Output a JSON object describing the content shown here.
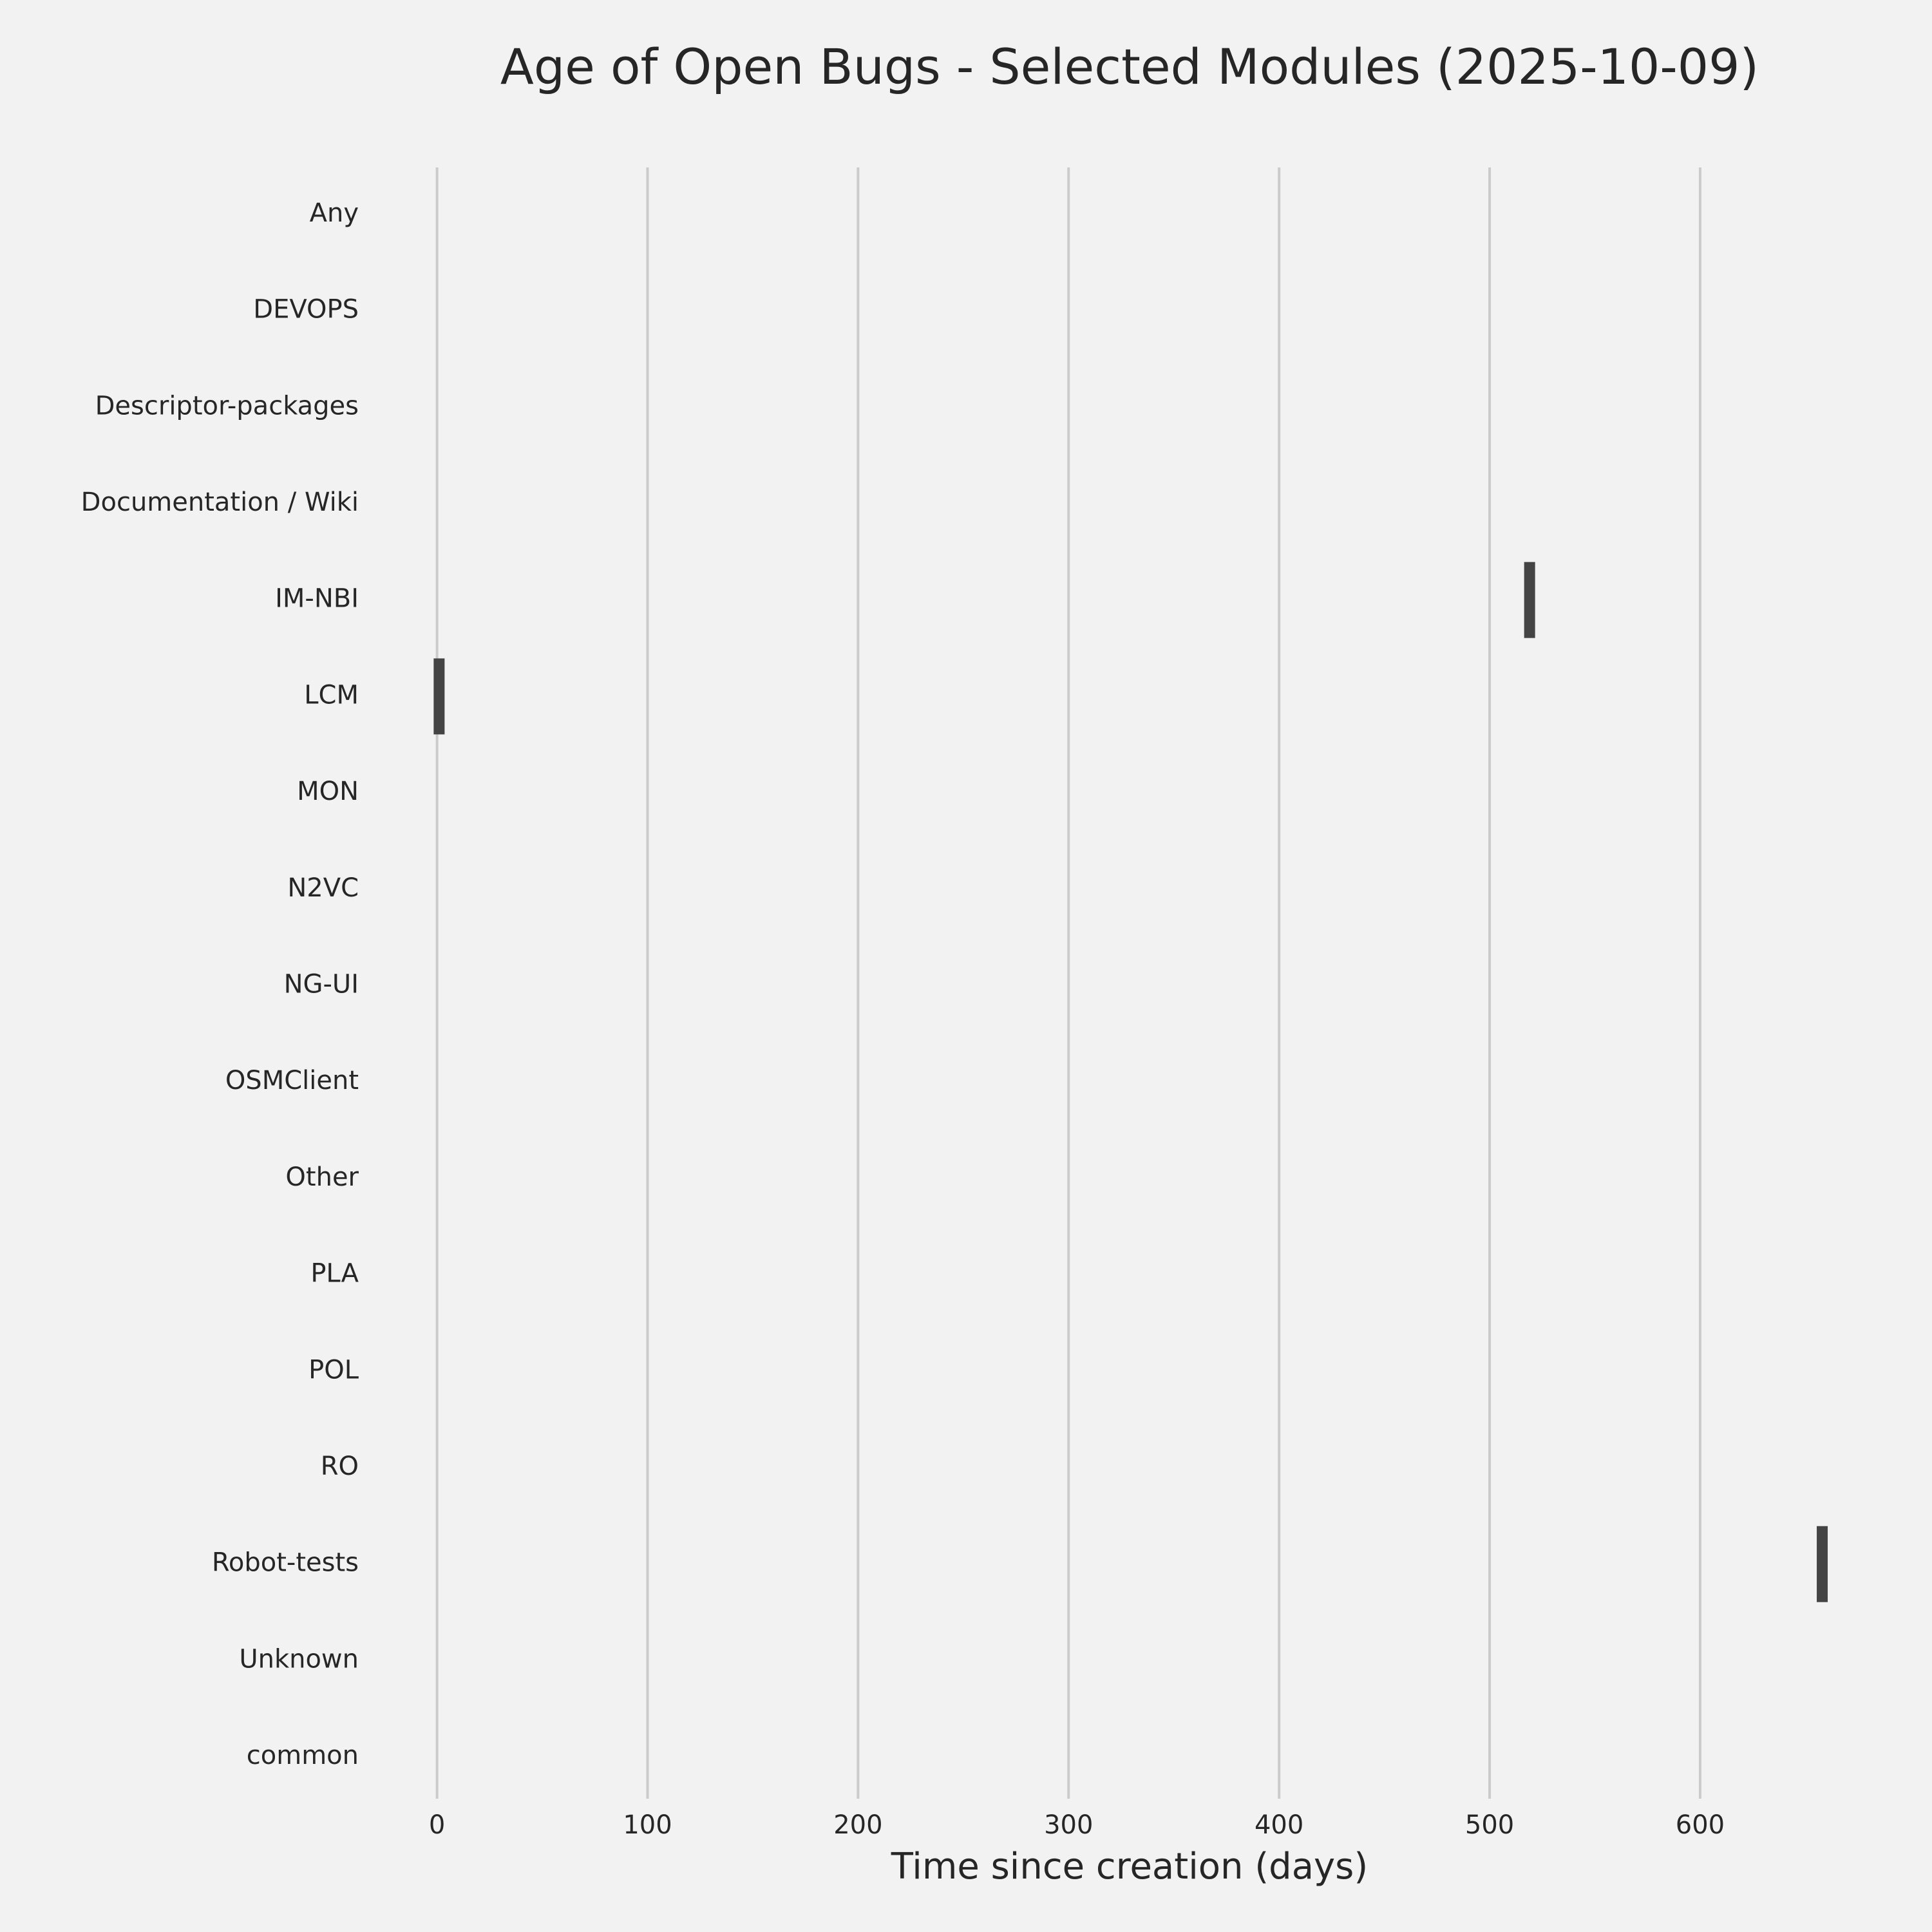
{
  "chart_data": {
    "type": "box",
    "title": "Age of Open Bugs - Selected Modules (2025-10-09)",
    "x_label": "Time since creation (days)",
    "categories": [
      "Any",
      "DEVOPS",
      "Descriptor-packages",
      "Documentation / Wiki",
      "IM-NBI",
      "LCM",
      "MON",
      "N2VC",
      "NG-UI",
      "OSMClient",
      "Other",
      "PLA",
      "POL",
      "RO",
      "Robot-tests",
      "Unknown",
      "common"
    ],
    "values": [
      null,
      null,
      null,
      null,
      519,
      1,
      null,
      null,
      null,
      null,
      null,
      null,
      null,
      null,
      658,
      null,
      null
    ],
    "color": "#444444",
    "xlim": [
      -32,
      682
    ],
    "xticks": [
      0,
      100,
      200,
      300,
      400,
      500,
      600
    ],
    "grid": true
  }
}
